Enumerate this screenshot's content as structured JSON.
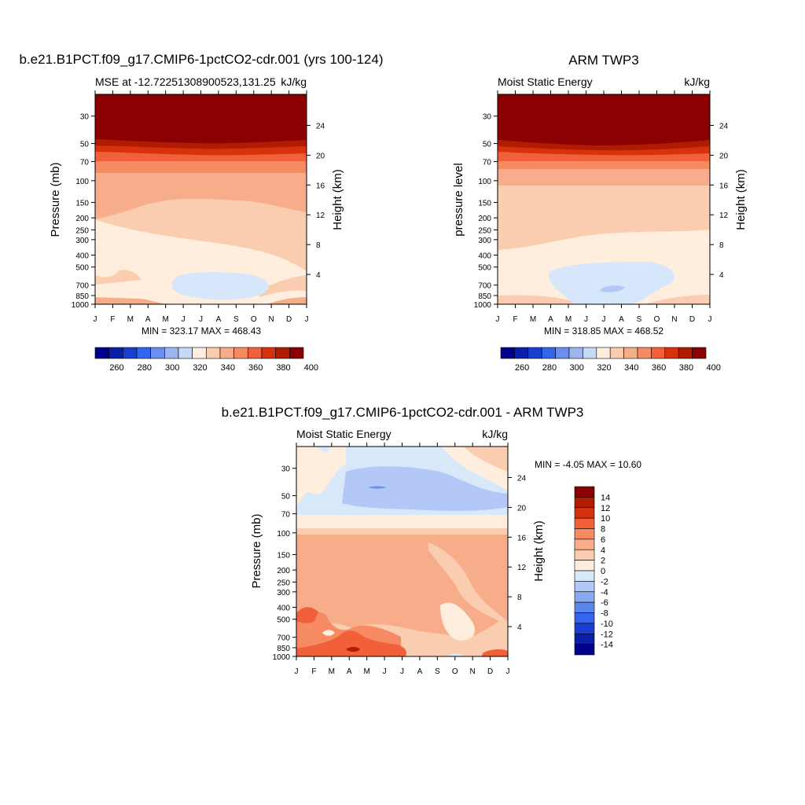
{
  "colors": {
    "cb1": [
      "#00008b",
      "#0a1fa8",
      "#1a3fd0",
      "#3366ee",
      "#6a8ff0",
      "#9db4f0",
      "#c6d9f5",
      "#ffeedd",
      "#fbcdb0",
      "#f8ad8a",
      "#f68a62",
      "#f2603a",
      "#d8310e",
      "#b01c00",
      "#8b0000"
    ],
    "cb3": [
      "#8b0000",
      "#b01c00",
      "#d8310e",
      "#f2603a",
      "#f68a62",
      "#f8ad8a",
      "#fbcdb0",
      "#ffeedd",
      "#d8e8fb",
      "#b3c8f6",
      "#8aaaf0",
      "#5a86ec",
      "#3366ee",
      "#1a3fd0",
      "#0a1fa8",
      "#00008b"
    ]
  },
  "chart_data": [
    {
      "type": "contour",
      "title": "b.e21.B1PCT.f09_g17.CMIP6-1pctCO2-cdr.001 (yrs 100-124)",
      "subtitle_left": "MSE at -12.72251308900523,131.25",
      "subtitle_right": "kJ/kg",
      "ylabel": "Pressure (mb)",
      "ylabel_right": "Height (km)",
      "x_ticks": [
        "J",
        "F",
        "M",
        "A",
        "M",
        "J",
        "J",
        "A",
        "S",
        "O",
        "N",
        "D",
        "J"
      ],
      "y_ticks": [
        "30",
        "50",
        "70",
        "100",
        "150",
        "200",
        "250",
        "300",
        "400",
        "500",
        "700",
        "850",
        "1000"
      ],
      "y_right_ticks": [
        "24",
        "20",
        "16",
        "12",
        "8",
        "4"
      ],
      "stats": "MIN = 323.17 MAX = 468.43",
      "min": 323.17,
      "max": 468.43
    },
    {
      "type": "contour",
      "title": "ARM TWP3",
      "subtitle_left": "Moist Static Energy",
      "subtitle_right": "kJ/kg",
      "ylabel": "pressure level",
      "ylabel_right": "Height (km)",
      "x_ticks": [
        "J",
        "F",
        "M",
        "A",
        "M",
        "J",
        "J",
        "A",
        "S",
        "O",
        "N",
        "D",
        "J"
      ],
      "y_ticks": [
        "30",
        "50",
        "70",
        "100",
        "150",
        "200",
        "250",
        "300",
        "400",
        "500",
        "700",
        "850",
        "1000"
      ],
      "y_right_ticks": [
        "24",
        "20",
        "16",
        "12",
        "8",
        "4"
      ],
      "stats": "MIN = 318.85 MAX = 468.52",
      "min": 318.85,
      "max": 468.52
    },
    {
      "type": "contour",
      "title": "b.e21.B1PCT.f09_g17.CMIP6-1pctCO2-cdr.001 - ARM TWP3",
      "subtitle_left": "Moist Static Energy",
      "subtitle_right": "kJ/kg",
      "ylabel": "Pressure (mb)",
      "ylabel_right": "Height (km)",
      "x_ticks": [
        "J",
        "F",
        "M",
        "A",
        "M",
        "J",
        "J",
        "A",
        "S",
        "O",
        "N",
        "D",
        "J"
      ],
      "y_ticks": [
        "30",
        "50",
        "70",
        "100",
        "150",
        "200",
        "250",
        "300",
        "400",
        "500",
        "700",
        "850",
        "1000"
      ],
      "y_right_ticks": [
        "24",
        "20",
        "16",
        "12",
        "8",
        "4"
      ],
      "stats": "MIN =  -4.05 MAX =  10.60",
      "min": -4.05,
      "max": 10.6
    }
  ],
  "colorbar_shared": {
    "labels": [
      "260",
      "280",
      "300",
      "320",
      "340",
      "360",
      "380",
      "400"
    ]
  },
  "colorbar_diff": {
    "labels": [
      "14",
      "12",
      "10",
      "8",
      "6",
      "4",
      "2",
      "0",
      "-2",
      "-4",
      "-6",
      "-8",
      "-10",
      "-12",
      "-14"
    ]
  }
}
